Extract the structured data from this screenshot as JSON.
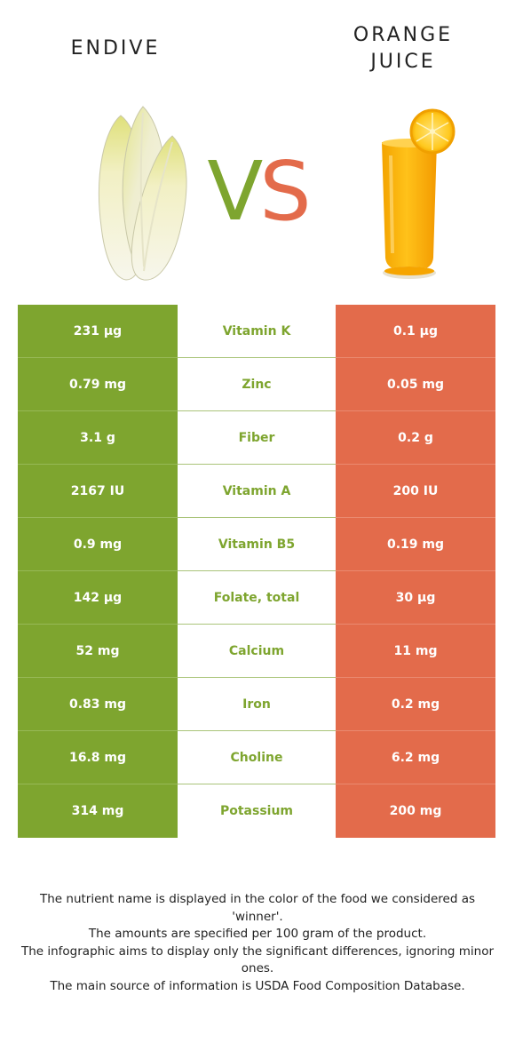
{
  "header": {
    "left_food": "ENDIVE",
    "right_food_line1": "ORANGE",
    "right_food_line2": "JUICE",
    "vs_v": "V",
    "vs_s": "S"
  },
  "colors": {
    "winner_left": "#7ea52f",
    "winner_right": "#e36b4b",
    "background": "#ffffff"
  },
  "rows": [
    {
      "left": "231 µg",
      "nutrient": "Vitamin K",
      "right": "0.1 µg",
      "winner": "left"
    },
    {
      "left": "0.79 mg",
      "nutrient": "Zinc",
      "right": "0.05 mg",
      "winner": "left"
    },
    {
      "left": "3.1 g",
      "nutrient": "Fiber",
      "right": "0.2 g",
      "winner": "left"
    },
    {
      "left": "2167 IU",
      "nutrient": "Vitamin A",
      "right": "200 IU",
      "winner": "left"
    },
    {
      "left": "0.9 mg",
      "nutrient": "Vitamin B5",
      "right": "0.19 mg",
      "winner": "left"
    },
    {
      "left": "142 µg",
      "nutrient": "Folate, total",
      "right": "30 µg",
      "winner": "left"
    },
    {
      "left": "52 mg",
      "nutrient": "Calcium",
      "right": "11 mg",
      "winner": "left"
    },
    {
      "left": "0.83 mg",
      "nutrient": "Iron",
      "right": "0.2 mg",
      "winner": "left"
    },
    {
      "left": "16.8 mg",
      "nutrient": "Choline",
      "right": "6.2 mg",
      "winner": "left"
    },
    {
      "left": "314 mg",
      "nutrient": "Potassium",
      "right": "200 mg",
      "winner": "left"
    }
  ],
  "footnote": {
    "line1": "The nutrient name is displayed in the color of the food we considered as 'winner'.",
    "line2": "The amounts are specified per 100 gram of the product.",
    "line3": "The infographic aims to display only the significant differences, ignoring minor ones.",
    "line4": "The main source of information is USDA Food Composition Database."
  }
}
